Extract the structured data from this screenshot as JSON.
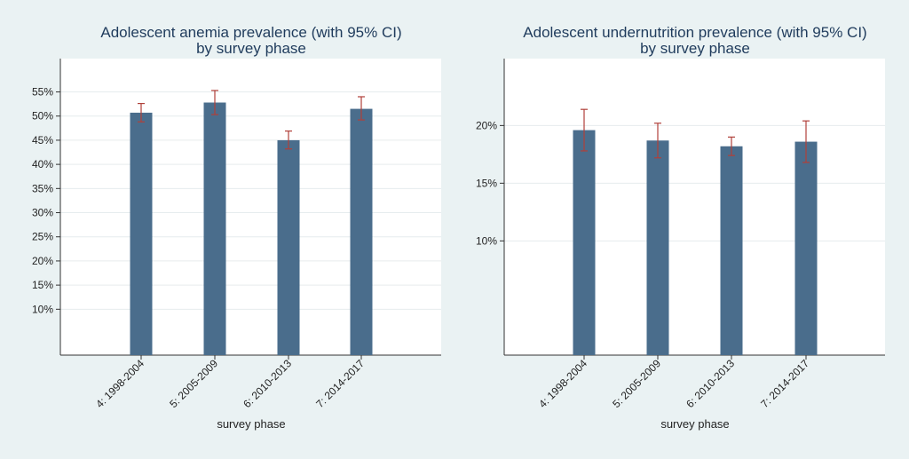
{
  "chart_data": [
    {
      "type": "bar",
      "title": "Adolescent anemia prevalence (with 95% CI)",
      "subtitle": "by survey phase",
      "xlabel": "survey phase",
      "ylabel": "",
      "categories": [
        "4: 1998-2004",
        "5: 2005-2009",
        "6: 2010-2013",
        "7: 2014-2017"
      ],
      "values": [
        50.7,
        52.8,
        45.0,
        51.5
      ],
      "ci_lower": [
        48.8,
        50.3,
        43.2,
        49.2
      ],
      "ci_upper": [
        52.6,
        55.3,
        46.9,
        54.0
      ],
      "yticks": [
        10,
        15,
        20,
        25,
        30,
        35,
        40,
        45,
        50,
        55
      ],
      "ytick_labels": [
        "10%",
        "15%",
        "20%",
        "25%",
        "30%",
        "35%",
        "40%",
        "45%",
        "50%",
        "55%"
      ],
      "ylim": [
        0.5,
        61.9
      ],
      "grid": true,
      "colors": {
        "bar": "#4a6d8c",
        "ci": "#b0403a",
        "plot_bg": "#ffffff"
      }
    },
    {
      "type": "bar",
      "title": "Adolescent undernutrition prevalence (with 95% CI)",
      "subtitle": "by survey phase",
      "xlabel": "survey phase",
      "ylabel": "",
      "categories": [
        "4: 1998-2004",
        "5: 2005-2009",
        "6: 2010-2013",
        "7: 2014-2017"
      ],
      "values": [
        19.6,
        18.7,
        18.2,
        18.6
      ],
      "ci_lower": [
        17.8,
        17.2,
        17.4,
        16.8
      ],
      "ci_upper": [
        21.4,
        20.2,
        19.0,
        20.4
      ],
      "yticks": [
        10,
        15,
        20
      ],
      "ytick_labels": [
        "10%",
        "15%",
        "20%"
      ],
      "ylim": [
        0.1,
        25.8
      ],
      "grid": true,
      "colors": {
        "bar": "#4a6d8c",
        "ci": "#b0403a",
        "plot_bg": "#ffffff"
      }
    }
  ]
}
